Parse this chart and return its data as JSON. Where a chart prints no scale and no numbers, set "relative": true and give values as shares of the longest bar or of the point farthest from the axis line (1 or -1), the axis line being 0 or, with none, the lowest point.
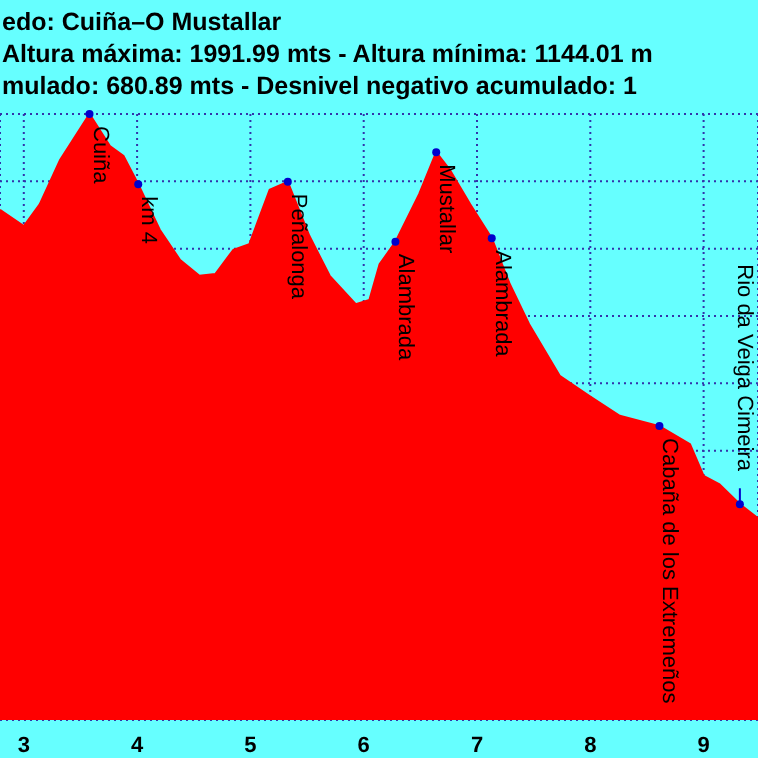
{
  "chart_data": {
    "type": "area",
    "title": "edo: Cuiña–O Mustallar",
    "subtitle": "Altura máxima: 1991.99 mts - Altura mínima: 1144.01 m",
    "relative": true,
    "grid": true,
    "xlim": [
      2.79,
      9.48
    ],
    "xticks": [
      3,
      4,
      5,
      6,
      7,
      8,
      9
    ],
    "x": [
      2.79,
      3.0,
      3.14,
      3.32,
      3.58,
      3.76,
      3.88,
      4.01,
      4.2,
      4.38,
      4.55,
      4.69,
      4.85,
      4.99,
      5.17,
      5.33,
      5.52,
      5.7,
      5.93,
      6.05,
      6.14,
      6.28,
      6.49,
      6.64,
      6.76,
      6.94,
      7.13,
      7.29,
      7.46,
      7.73,
      7.99,
      8.26,
      8.61,
      8.88,
      9.0,
      9.14,
      9.32,
      9.48
    ],
    "series": [
      {
        "color": "#ff0000",
        "values": [
          0.842,
          0.815,
          0.851,
          0.924,
          1.0,
          0.947,
          0.931,
          0.884,
          0.809,
          0.759,
          0.733,
          0.736,
          0.776,
          0.785,
          0.875,
          0.888,
          0.799,
          0.733,
          0.686,
          0.693,
          0.752,
          0.789,
          0.868,
          0.937,
          0.908,
          0.851,
          0.795,
          0.719,
          0.653,
          0.568,
          0.535,
          0.502,
          0.485,
          0.455,
          0.403,
          0.389,
          0.356,
          0.333
        ]
      }
    ],
    "annotations": [
      "mulado: 680.89 mts - Desnivel negativo acumulado: 1",
      {
        "text": "Cuiña",
        "x": 3.58,
        "y": 1.0
      },
      {
        "text": "km 4",
        "x": 4.01,
        "y": 0.884
      },
      {
        "text": "Peñalonga",
        "x": 5.33,
        "y": 0.888
      },
      {
        "text": "Alambrada",
        "x": 6.28,
        "y": 0.789
      },
      {
        "text": "Mustallar",
        "x": 6.64,
        "y": 0.937
      },
      {
        "text": "Alambrada",
        "x": 7.13,
        "y": 0.795
      },
      {
        "text": "Cabaña de los Extremeños",
        "x": 8.61,
        "y": 0.485
      },
      {
        "text": "Rio da Veiga Cimeira",
        "x": 9.32,
        "y": 0.356
      }
    ]
  }
}
